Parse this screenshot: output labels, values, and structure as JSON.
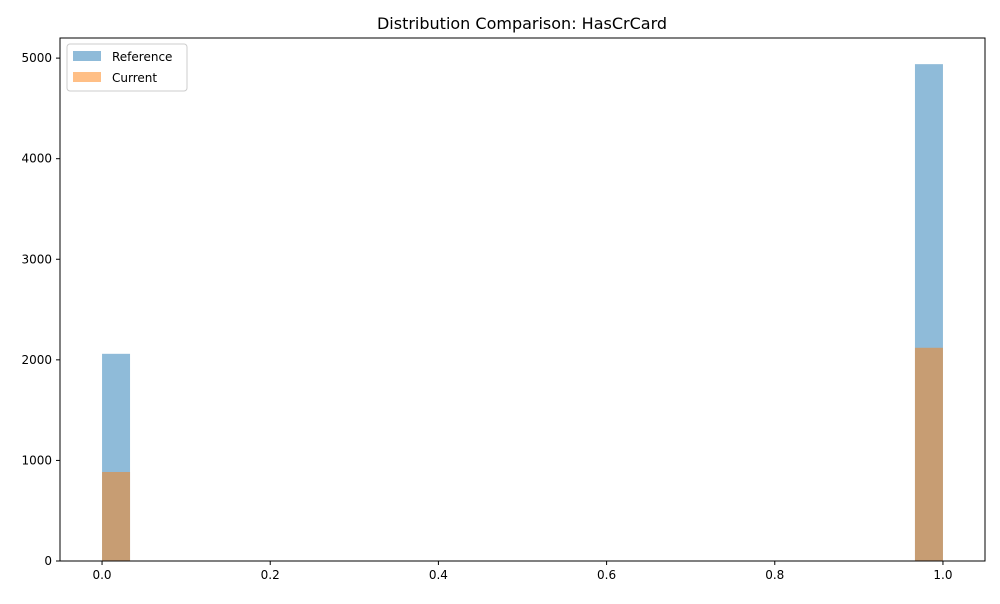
{
  "chart_data": {
    "type": "bar",
    "title": "Distribution Comparison: HasCrCard",
    "xlabel": "",
    "ylabel": "",
    "xlim": [
      -0.05,
      1.05
    ],
    "ylim": [
      0,
      5200
    ],
    "x_ticks": [
      0.0,
      0.2,
      0.4,
      0.6,
      0.8,
      1.0
    ],
    "x_tick_labels": [
      "0.0",
      "0.2",
      "0.4",
      "0.6",
      "0.8",
      "1.0"
    ],
    "y_ticks": [
      0,
      1000,
      2000,
      3000,
      4000,
      5000
    ],
    "y_tick_labels": [
      "0",
      "1000",
      "2000",
      "3000",
      "4000",
      "5000"
    ],
    "bin_width": 0.0333,
    "legend_position": "top-left",
    "grid": false,
    "series": [
      {
        "name": "Reference",
        "color": "#1f77b4",
        "opacity": 0.5,
        "bins": [
          {
            "x_start": 0.0,
            "x_end": 0.0333,
            "count": 2060
          },
          {
            "x_start": 0.9667,
            "x_end": 1.0,
            "count": 4940
          }
        ]
      },
      {
        "name": "Current",
        "color": "#ff7f0e",
        "opacity": 0.5,
        "bins": [
          {
            "x_start": 0.0,
            "x_end": 0.0333,
            "count": 885
          },
          {
            "x_start": 0.9667,
            "x_end": 1.0,
            "count": 2120
          }
        ]
      }
    ]
  }
}
